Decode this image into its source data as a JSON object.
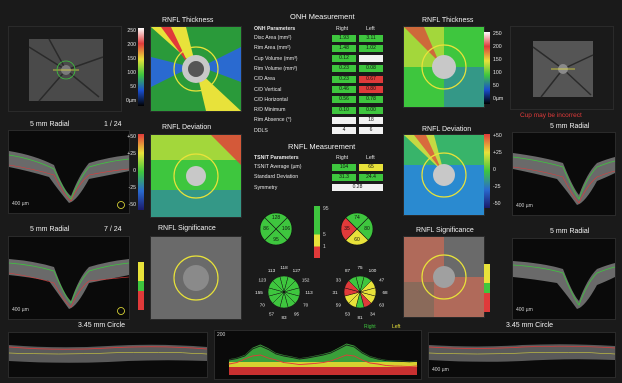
{
  "app": {
    "title": "ONH Measurement",
    "rnfl_title": "RNFL Measurement"
  },
  "colors": {
    "green": "#3ec63e",
    "yellow": "#e8e23a",
    "red": "#e03a3a",
    "white": "#f2f2f2",
    "background": "#000000"
  },
  "left": {
    "thickness_title": "RNFL Thickness",
    "deviation_title": "RNFL Deviation",
    "significance_title": "RNFL Significance",
    "radial1": {
      "label": "5 mm Radial",
      "index": "1 / 24",
      "scale": "400 µm"
    },
    "radial2": {
      "label": "5 mm Radial",
      "index": "7 / 24",
      "scale": "400 µm"
    },
    "circle": {
      "label": "3.45 mm Circle"
    },
    "scale_thickness": [
      "250",
      "200",
      "150",
      "100",
      "50",
      "0µm"
    ],
    "scale_deviation": [
      "+50",
      "+25",
      "0",
      "-25",
      "-50"
    ]
  },
  "right": {
    "thickness_title": "RNFL Thickness",
    "deviation_title": "RNFL Deviation",
    "significance_title": "RNFL Significance",
    "warning": "Cup may be incorrect",
    "radial1": {
      "label": "5 mm Radial",
      "scale": "400 µm"
    },
    "radial2": {
      "label": "5 mm Radial",
      "scale": "400 µm"
    },
    "circle": {
      "label": "3.45 mm Circle",
      "scale": "400 µm"
    },
    "scale_thickness": [
      "250",
      "200",
      "150",
      "100",
      "50",
      "0µm"
    ],
    "scale_deviation": [
      "+50",
      "+25",
      "0",
      "-25",
      "-50"
    ]
  },
  "onh": {
    "header": {
      "param": "ONH Parameters",
      "right": "Right",
      "left": "Left"
    },
    "rows": [
      {
        "label": "Disc Area (mm²)",
        "right": "1.93",
        "left": "3.11",
        "rc": "#3ec63e",
        "lc": "#3ec63e"
      },
      {
        "label": "Rim Area (mm²)",
        "right": "1.48",
        "left": "1.02",
        "rc": "#3ec63e",
        "lc": "#3ec63e"
      },
      {
        "label": "Cup Volume (mm³)",
        "right": "0.12",
        "left": "",
        "rc": "#3ec63e",
        "lc": "#f2f2f2"
      },
      {
        "label": "Rim Volume (mm³)",
        "right": "0.23",
        "left": "0.08",
        "rc": "#3ec63e",
        "lc": "#3ec63e"
      },
      {
        "label": "C/D Area",
        "right": "0.23",
        "left": "0.67",
        "rc": "#3ec63e",
        "lc": "#e03a3a"
      },
      {
        "label": "C/D Vertical",
        "right": "0.46",
        "left": "0.80",
        "rc": "#3ec63e",
        "lc": "#e03a3a"
      },
      {
        "label": "C/D Horizontal",
        "right": "0.56",
        "left": "0.78",
        "rc": "#3ec63e",
        "lc": "#3ec63e"
      },
      {
        "label": "R/D Minimum",
        "right": "0.10",
        "left": "0.00",
        "rc": "#3ec63e",
        "lc": "#3ec63e"
      },
      {
        "label": "Rim Absence (°)",
        "right": "",
        "left": "18",
        "rc": "#f2f2f2",
        "lc": "#f2f2f2"
      },
      {
        "label": "DDLS",
        "right": "4",
        "left": "6",
        "rc": "#f2f2f2",
        "lc": "#f2f2f2"
      }
    ]
  },
  "tsnit": {
    "header": {
      "param": "TSNIT Parameters",
      "right": "Right",
      "left": "Left"
    },
    "rows": [
      {
        "label": "TSNIT Average (µm)",
        "right": "104",
        "left": "65",
        "rc": "#3ec63e",
        "lc": "#e8e23a"
      },
      {
        "label": "Standard Deviation",
        "right": "31.3",
        "left": "24.4",
        "rc": "#3ec63e",
        "lc": "#3ec63e"
      },
      {
        "label": "Symmetry",
        "right": "0.28",
        "left": "",
        "rc": "#f2f2f2",
        "lc": "#f2f2f2"
      }
    ]
  },
  "quadrants": {
    "right": [
      "128",
      "106",
      "95",
      "86"
    ],
    "left": [
      "74",
      "80",
      "60",
      "35"
    ],
    "legend": [
      "95",
      "5",
      "1"
    ]
  },
  "clock": {
    "right": [
      "118",
      "127",
      "152",
      "113",
      "70",
      "95",
      "83",
      "57",
      "70",
      "155",
      "123",
      "113"
    ],
    "left": [
      "75",
      "100",
      "47",
      "68",
      "63",
      "34",
      "81",
      "53",
      "59",
      "31",
      "33",
      "87"
    ]
  },
  "tsnit_chart": {
    "y_tick": "200",
    "legend": {
      "right": "Right",
      "left": "Left"
    }
  },
  "chart_data": {
    "type": "line",
    "title": "",
    "xlabel": "",
    "ylabel": "",
    "ylim": [
      0,
      200
    ],
    "x": [
      0,
      1,
      2,
      3,
      4,
      5,
      6,
      7,
      8,
      9,
      10,
      11,
      12,
      13,
      14,
      15,
      16,
      17,
      18,
      19,
      20,
      21,
      22,
      23,
      24
    ],
    "series": [
      {
        "name": "Right",
        "values": [
          75,
          82,
          95,
          130,
          145,
          128,
          105,
          95,
          88,
          80,
          85,
          92,
          100,
          110,
          130,
          150,
          140,
          110,
          90,
          80,
          72,
          70,
          68,
          66,
          68
        ]
      },
      {
        "name": "Left",
        "values": [
          55,
          62,
          80,
          95,
          100,
          85,
          75,
          62,
          58,
          52,
          55,
          58,
          62,
          70,
          85,
          100,
          95,
          75,
          60,
          55,
          48,
          45,
          44,
          42,
          45
        ]
      }
    ]
  }
}
